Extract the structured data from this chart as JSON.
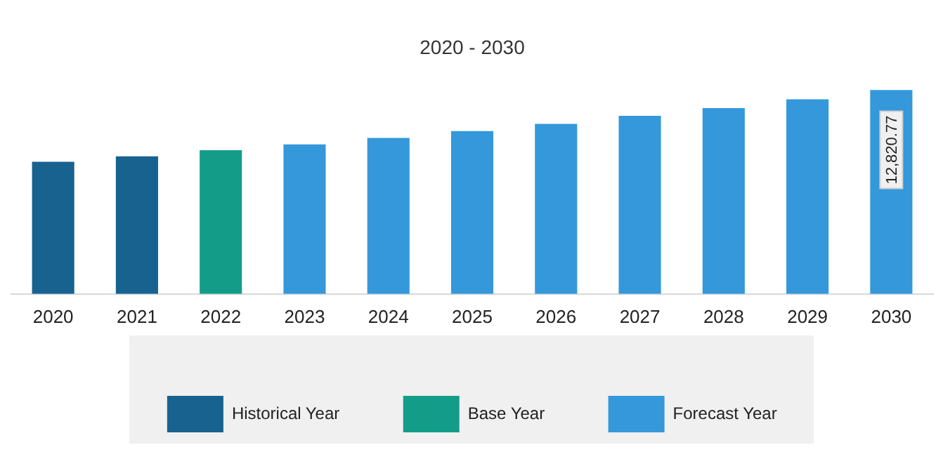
{
  "chart_data": {
    "type": "bar",
    "title": "2020 - 2030",
    "categories": [
      "2020",
      "2021",
      "2022",
      "2023",
      "2024",
      "2025",
      "2026",
      "2027",
      "2028",
      "2029",
      "2030"
    ],
    "series": [
      {
        "name": "Historical Year",
        "color": "#17628f",
        "values": [
          8310,
          8650,
          null,
          null,
          null,
          null,
          null,
          null,
          null,
          null,
          null
        ]
      },
      {
        "name": "Base Year",
        "color": "#139d89",
        "values": [
          null,
          null,
          9040,
          null,
          null,
          null,
          null,
          null,
          null,
          null,
          null
        ]
      },
      {
        "name": "Forecast Year",
        "color": "#3498db",
        "values": [
          null,
          null,
          null,
          9400,
          9810,
          10240,
          10690,
          11200,
          11690,
          12240,
          12820.77
        ],
        "value_labels": [
          null,
          null,
          null,
          null,
          null,
          null,
          null,
          null,
          null,
          null,
          "12,820.77"
        ]
      }
    ],
    "legend": "bottom",
    "grid": false
  }
}
